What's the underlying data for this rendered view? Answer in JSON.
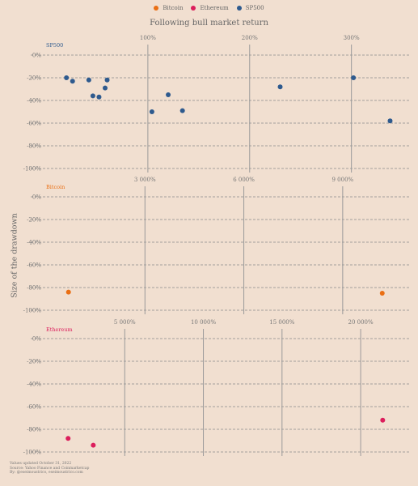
{
  "legend": [
    {
      "label": "Bitcoin",
      "color": "#ea6f14"
    },
    {
      "label": "Ethereum",
      "color": "#dc1e5c"
    },
    {
      "label": "SP500",
      "color": "#2e5a8e"
    }
  ],
  "x_axis_title": "Following bull market return",
  "y_axis_title": "Size of the drawdown",
  "footer": {
    "line1": "Values updated October 31, 2022",
    "line2": "Source: Yahoo Finance and Coinmarketcap",
    "line3": "By: @eseimoustrico, eseimoustrico.com"
  },
  "chart_data": [
    {
      "type": "scatter",
      "title": "SP500",
      "color": "#2e5a8e",
      "xlim": [
        0,
        340
      ],
      "ylim": [
        -100,
        0
      ],
      "x_ticks": [
        100,
        200,
        300
      ],
      "x_tick_labels": [
        "100%",
        "200%",
        "300%"
      ],
      "y_ticks": [
        0,
        -20,
        -40,
        -60,
        -80,
        -100
      ],
      "y_tick_labels": [
        "0%",
        "-20%",
        "-40%",
        "-60%",
        "-80%",
        "-100%"
      ],
      "points": [
        {
          "x": 20,
          "y": -20
        },
        {
          "x": 26,
          "y": -23
        },
        {
          "x": 42,
          "y": -22
        },
        {
          "x": 46,
          "y": -36
        },
        {
          "x": 52,
          "y": -37
        },
        {
          "x": 58,
          "y": -29
        },
        {
          "x": 60,
          "y": -22
        },
        {
          "x": 104,
          "y": -50
        },
        {
          "x": 120,
          "y": -35
        },
        {
          "x": 134,
          "y": -49
        },
        {
          "x": 230,
          "y": -28
        },
        {
          "x": 302,
          "y": -20
        },
        {
          "x": 338,
          "y": -58
        }
      ]
    },
    {
      "type": "scatter",
      "title": "Bitcoin",
      "color": "#ea6f14",
      "xlim": [
        0,
        10500
      ],
      "ylim": [
        -100,
        0
      ],
      "x_ticks": [
        3000,
        6000,
        9000
      ],
      "x_tick_labels": [
        "3 000%",
        "6 000%",
        "9 000%"
      ],
      "y_ticks": [
        0,
        -20,
        -40,
        -60,
        -80,
        -100
      ],
      "y_tick_labels": [
        "0%",
        "-20%",
        "-40%",
        "-60%",
        "-80%",
        "-100%"
      ],
      "points": [
        {
          "x": 680,
          "y": -84
        },
        {
          "x": 10200,
          "y": -85
        }
      ]
    },
    {
      "type": "scatter",
      "title": "Ethereum",
      "color": "#dc1e5c",
      "xlim": [
        0,
        22000
      ],
      "ylim": [
        -100,
        0
      ],
      "x_ticks": [
        5000,
        10000,
        15000,
        20000
      ],
      "x_tick_labels": [
        "5 000%",
        "10 000%",
        "15 000%",
        "20 000%"
      ],
      "y_ticks": [
        0,
        -20,
        -40,
        -60,
        -80,
        -100
      ],
      "y_tick_labels": [
        "0%",
        "-20%",
        "-40%",
        "-60%",
        "-80%",
        "-100%"
      ],
      "points": [
        {
          "x": 1400,
          "y": -88
        },
        {
          "x": 3000,
          "y": -94
        },
        {
          "x": 21400,
          "y": -72
        }
      ]
    }
  ]
}
